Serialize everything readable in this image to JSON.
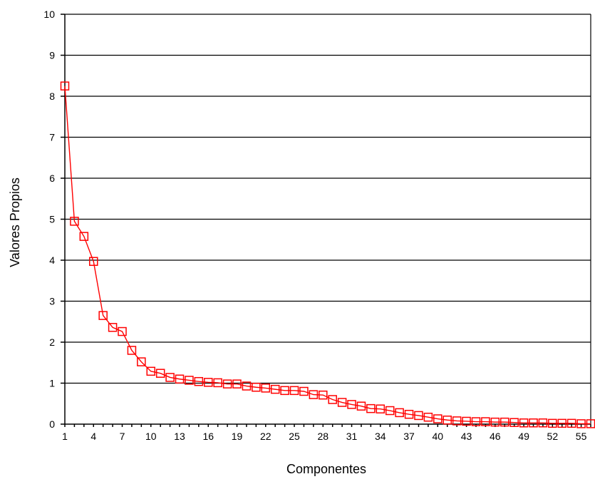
{
  "chart_data": {
    "type": "line",
    "xlabel": "Componentes",
    "ylabel": "Valores Propios",
    "ylim": [
      0,
      10
    ],
    "xlim": [
      1,
      56
    ],
    "y_ticks": [
      "0",
      "1",
      "2",
      "3",
      "4",
      "5",
      "6",
      "7",
      "8",
      "9",
      "10"
    ],
    "x_ticks": [
      "1",
      "4",
      "7",
      "10",
      "13",
      "16",
      "19",
      "22",
      "25",
      "28",
      "31",
      "34",
      "37",
      "40",
      "43",
      "46",
      "49",
      "52",
      "55"
    ],
    "grid": true,
    "series_color": "#ff0000",
    "marker": "square-open",
    "series": [
      {
        "x": [
          1,
          2,
          3,
          4,
          5,
          6,
          7,
          8,
          9,
          10,
          11,
          12,
          13,
          14,
          15,
          16,
          17,
          18,
          19,
          20,
          21,
          22,
          23,
          24,
          25,
          26,
          27,
          28,
          29,
          30,
          31,
          32,
          33,
          34,
          35,
          36,
          37,
          38,
          39,
          40,
          41,
          42,
          43,
          44,
          45,
          46,
          47,
          48,
          49,
          50,
          51,
          52,
          53,
          54,
          55,
          56
        ],
        "values": [
          8.25,
          4.95,
          4.58,
          3.97,
          2.65,
          2.36,
          2.26,
          1.8,
          1.52,
          1.29,
          1.24,
          1.14,
          1.1,
          1.07,
          1.04,
          1.02,
          1.01,
          0.98,
          0.98,
          0.93,
          0.9,
          0.88,
          0.85,
          0.82,
          0.82,
          0.8,
          0.72,
          0.71,
          0.6,
          0.53,
          0.48,
          0.44,
          0.38,
          0.37,
          0.33,
          0.28,
          0.24,
          0.21,
          0.17,
          0.13,
          0.1,
          0.08,
          0.07,
          0.06,
          0.06,
          0.05,
          0.05,
          0.04,
          0.03,
          0.03,
          0.03,
          0.02,
          0.02,
          0.02,
          0.01,
          0.01
        ]
      }
    ]
  }
}
